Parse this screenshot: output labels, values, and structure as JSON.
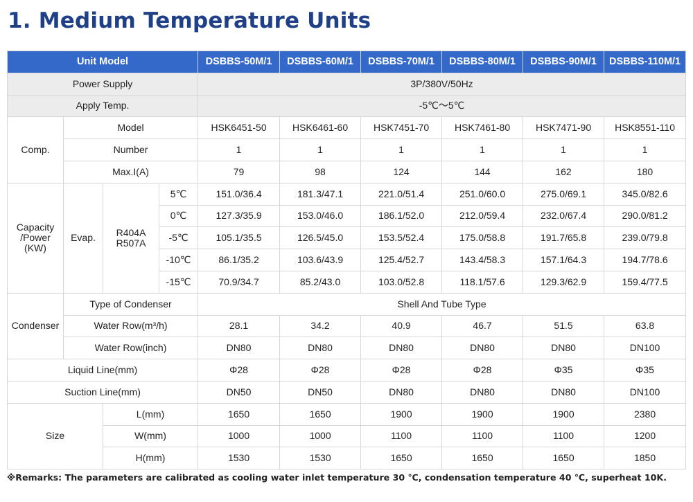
{
  "title": "1. Medium Temperature Units",
  "header": {
    "unit_model": "Unit Model",
    "models": [
      "DSBBS-50M/1",
      "DSBBS-60M/1",
      "DSBBS-70M/1",
      "DSBBS-80M/1",
      "DSBBS-90M/1",
      "DSBBS-110M/1"
    ]
  },
  "power_supply": {
    "label": "Power Supply",
    "value": "3P/380V/50Hz"
  },
  "apply_temp": {
    "label": "Apply Temp.",
    "value": "-5℃～5℃"
  },
  "comp": {
    "label": "Comp.",
    "rows": [
      {
        "label": "Model",
        "values": [
          "HSK6451-50",
          "HSK6461-60",
          "HSK7451-70",
          "HSK7461-80",
          "HSK7471-90",
          "HSK8551-110"
        ]
      },
      {
        "label": "Number",
        "values": [
          "1",
          "1",
          "1",
          "1",
          "1",
          "1"
        ]
      },
      {
        "label": "Max.I(A)",
        "values": [
          "79",
          "98",
          "124",
          "144",
          "162",
          "180"
        ]
      }
    ]
  },
  "capacity": {
    "label_line1": "Capacity",
    "label_line2": "/Power",
    "label_line3": "(KW)",
    "evap": "Evap.",
    "refrigerant_line1": "R404A",
    "refrigerant_line2": "R507A",
    "rows": [
      {
        "temp": "5℃",
        "values": [
          "151.0/36.4",
          "181.3/47.1",
          "221.0/51.4",
          "251.0/60.0",
          "275.0/69.1",
          "345.0/82.6"
        ]
      },
      {
        "temp": "0℃",
        "values": [
          "127.3/35.9",
          "153.0/46.0",
          "186.1/52.0",
          "212.0/59.4",
          "232.0/67.4",
          "290.0/81.2"
        ]
      },
      {
        "temp": "-5℃",
        "values": [
          "105.1/35.5",
          "126.5/45.0",
          "153.5/52.4",
          "175.0/58.8",
          "191.7/65.8",
          "239.0/79.8"
        ]
      },
      {
        "temp": "-10℃",
        "values": [
          "86.1/35.2",
          "103.6/43.9",
          "125.4/52.7",
          "143.4/58.3",
          "157.1/64.3",
          "194.7/78.6"
        ]
      },
      {
        "temp": "-15℃",
        "values": [
          "70.9/34.7",
          "85.2/43.0",
          "103.0/52.8",
          "118.1/57.6",
          "129.3/62.9",
          "159.4/77.5"
        ]
      }
    ]
  },
  "condenser": {
    "label": "Condenser",
    "type_label": "Type of Condenser",
    "type_value": "Shell And Tube Type",
    "rows": [
      {
        "label": "Water Row(m³/h)",
        "values": [
          "28.1",
          "34.2",
          "40.9",
          "46.7",
          "51.5",
          "63.8"
        ]
      },
      {
        "label": "Water Row(inch)",
        "values": [
          "DN80",
          "DN80",
          "DN80",
          "DN80",
          "DN80",
          "DN100"
        ]
      }
    ]
  },
  "liquid_line": {
    "label": "Liquid Line(mm)",
    "values": [
      "Φ28",
      "Φ28",
      "Φ28",
      "Φ28",
      "Φ35",
      "Φ35"
    ]
  },
  "suction_line": {
    "label": "Suction Line(mm)",
    "values": [
      "DN50",
      "DN50",
      "DN80",
      "DN80",
      "DN80",
      "DN100"
    ]
  },
  "size": {
    "label": "Size",
    "rows": [
      {
        "label": "L(mm)",
        "values": [
          "1650",
          "1650",
          "1900",
          "1900",
          "1900",
          "2380"
        ]
      },
      {
        "label": "W(mm)",
        "values": [
          "1000",
          "1000",
          "1100",
          "1100",
          "1100",
          "1200"
        ]
      },
      {
        "label": "H(mm)",
        "values": [
          "1530",
          "1530",
          "1650",
          "1650",
          "1650",
          "1850"
        ]
      }
    ]
  },
  "remark": "※Remarks: The parameters are calibrated as cooling water inlet temperature 30 ℃, condensation temperature 40 ℃, superheat 10K.",
  "colors": {
    "title": "#1f3f87",
    "header_bg": "#3569c9",
    "gray_row": "#ececec",
    "border": "#d6d6d6"
  }
}
